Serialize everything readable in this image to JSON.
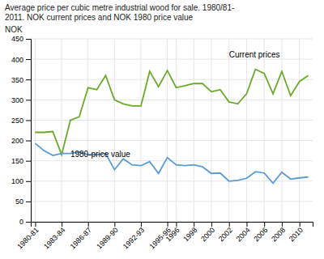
{
  "chart_data": {
    "type": "line",
    "title": "Average price per cubic metre industrial wood for sale. 1980/81-\n2011. NOK current prices and NOK 1980 price value",
    "y_label": "NOK",
    "categories": [
      "1980-81",
      null,
      null,
      "1983-84",
      null,
      null,
      "1986-87",
      null,
      null,
      "1989-90",
      null,
      null,
      "1992-93",
      null,
      null,
      "1995-96",
      "1996",
      null,
      "1998",
      null,
      "2000",
      null,
      "2002",
      null,
      "2004",
      null,
      "2006",
      null,
      "2008",
      null,
      "2010",
      null
    ],
    "series": [
      {
        "color": "#6aaa2a",
        "values": [
          220,
          220,
          222,
          165,
          250,
          258,
          330,
          325,
          360,
          300,
          290,
          285,
          285,
          370,
          332,
          372,
          330,
          335,
          340,
          340,
          320,
          325,
          295,
          290,
          315,
          375,
          365,
          315,
          370,
          310,
          345,
          360
        ]
      },
      {
        "color": "#5b9bd5",
        "values": [
          193,
          175,
          163,
          168,
          168,
          172,
          165,
          165,
          168,
          128,
          155,
          140,
          138,
          148,
          119,
          158,
          140,
          138,
          140,
          135,
          119,
          120,
          100,
          102,
          107,
          123,
          120,
          95,
          122,
          105,
          108,
          110
        ]
      }
    ],
    "annotations": [
      {
        "text": "Current prices",
        "x": 22,
        "y": 400
      },
      {
        "text": "1980-price value",
        "x": 4,
        "y": 155
      }
    ],
    "ylim": [
      0,
      450
    ],
    "yticks": [
      0,
      50,
      100,
      150,
      200,
      250,
      300,
      350,
      400,
      450
    ],
    "grid": true
  }
}
